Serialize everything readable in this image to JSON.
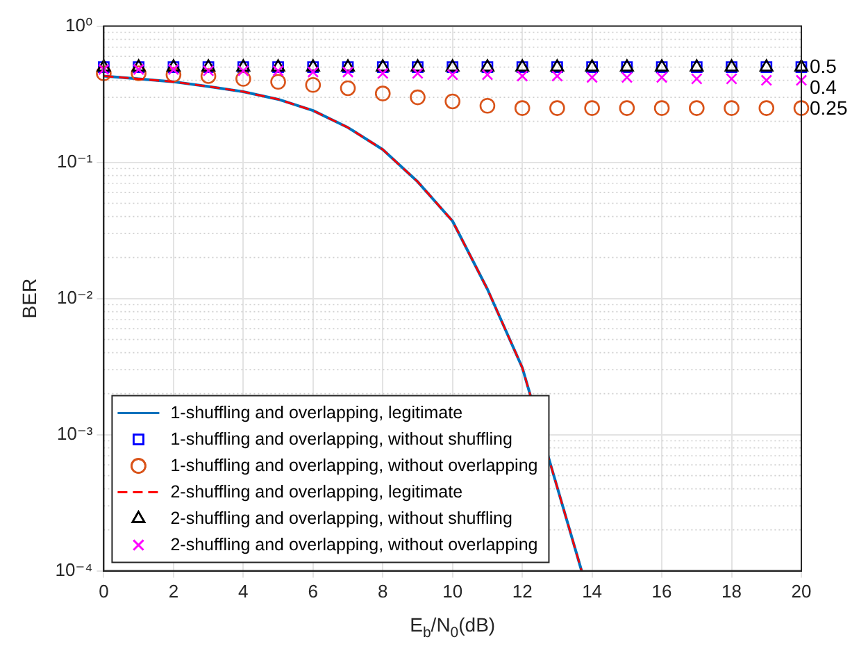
{
  "chart_data": {
    "type": "line",
    "xlabel": "E$_{b}$/N$_{0}$(dB)",
    "ylabel": "BER",
    "xlim": [
      0,
      20
    ],
    "xticks": [
      0,
      2,
      4,
      6,
      8,
      10,
      12,
      14,
      16,
      18,
      20
    ],
    "ylim": [
      0.0001,
      1
    ],
    "yticks": [
      {
        "value": 0.0001,
        "label": "10⁻⁴"
      },
      {
        "value": 0.001,
        "label": "10⁻³"
      },
      {
        "value": 0.01,
        "label": "10⁻²"
      },
      {
        "value": 0.1,
        "label": "10⁻¹"
      },
      {
        "value": 1,
        "label": "10⁰"
      }
    ],
    "log": "y",
    "grid": true,
    "legend": "bottom left",
    "annotations": [
      "0.5",
      "0.4",
      "0.25"
    ],
    "series": [
      {
        "name": "1-shuffling and overlapping, legitimate",
        "type": "line",
        "color": "#0072bd",
        "marker": "none",
        "line_style": "solid",
        "x": [
          0,
          1,
          2,
          3,
          4,
          5,
          6,
          7,
          8,
          9,
          10,
          11,
          12,
          13.7
        ],
        "values": [
          0.43,
          0.41,
          0.39,
          0.36,
          0.33,
          0.29,
          0.24,
          0.18,
          0.124,
          0.072,
          0.037,
          0.0117,
          0.0031,
          0.0001
        ]
      },
      {
        "name": "1-shuffling and overlapping, without shuffling",
        "type": "scatter",
        "color": "#0000ff",
        "marker": "square",
        "x": [
          0,
          1,
          2,
          3,
          4,
          5,
          6,
          7,
          8,
          9,
          10,
          11,
          12,
          13,
          14,
          15,
          16,
          17,
          18,
          19,
          20
        ],
        "values": [
          0.5,
          0.5,
          0.5,
          0.5,
          0.5,
          0.5,
          0.5,
          0.5,
          0.5,
          0.5,
          0.5,
          0.5,
          0.5,
          0.5,
          0.5,
          0.5,
          0.5,
          0.5,
          0.5,
          0.5,
          0.5
        ]
      },
      {
        "name": "1-shuffling and overlapping, without overlapping",
        "type": "scatter",
        "color": "#d95319",
        "marker": "circle",
        "x": [
          0,
          1,
          2,
          3,
          4,
          5,
          6,
          7,
          8,
          9,
          10,
          11,
          12,
          13,
          14,
          15,
          16,
          17,
          18,
          19,
          20
        ],
        "values": [
          0.45,
          0.45,
          0.44,
          0.43,
          0.41,
          0.39,
          0.37,
          0.35,
          0.32,
          0.3,
          0.28,
          0.26,
          0.25,
          0.25,
          0.25,
          0.25,
          0.25,
          0.25,
          0.25,
          0.25,
          0.25
        ]
      },
      {
        "name": "2-shuffling and overlapping, legitimate",
        "type": "line",
        "color": "#ff0000",
        "marker": "none",
        "line_style": "dashed",
        "x": [
          0,
          1,
          2,
          3,
          4,
          5,
          6,
          7,
          8,
          9,
          10,
          11,
          12,
          13.7
        ],
        "values": [
          0.43,
          0.41,
          0.39,
          0.36,
          0.33,
          0.29,
          0.24,
          0.18,
          0.124,
          0.072,
          0.037,
          0.0117,
          0.0031,
          0.0001
        ]
      },
      {
        "name": "2-shuffling and overlapping, without shuffling",
        "type": "scatter",
        "color": "#000000",
        "marker": "triangle",
        "x": [
          0,
          1,
          2,
          3,
          4,
          5,
          6,
          7,
          8,
          9,
          10,
          11,
          12,
          13,
          14,
          15,
          16,
          17,
          18,
          19,
          20
        ],
        "values": [
          0.5,
          0.5,
          0.5,
          0.5,
          0.5,
          0.5,
          0.5,
          0.5,
          0.5,
          0.5,
          0.5,
          0.5,
          0.5,
          0.5,
          0.5,
          0.5,
          0.5,
          0.5,
          0.5,
          0.5,
          0.5
        ]
      },
      {
        "name": "2-shuffling and overlapping, without overlapping",
        "type": "scatter",
        "color": "#ff00ff",
        "marker": "cross",
        "x": [
          0,
          1,
          2,
          3,
          4,
          5,
          6,
          7,
          8,
          9,
          10,
          11,
          12,
          13,
          14,
          15,
          16,
          17,
          18,
          19,
          20
        ],
        "values": [
          0.48,
          0.48,
          0.48,
          0.47,
          0.47,
          0.47,
          0.46,
          0.46,
          0.45,
          0.45,
          0.44,
          0.44,
          0.43,
          0.43,
          0.42,
          0.42,
          0.42,
          0.41,
          0.41,
          0.4,
          0.4
        ]
      }
    ]
  }
}
